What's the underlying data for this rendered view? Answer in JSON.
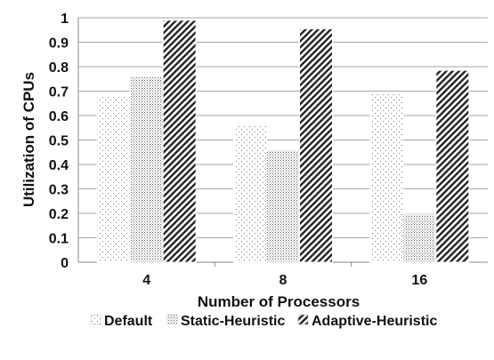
{
  "chart_data": {
    "type": "bar",
    "title": "",
    "xlabel": "Number of Processors",
    "ylabel": "Utilization of CPUs",
    "categories": [
      "4",
      "8",
      "16"
    ],
    "ylim": [
      0,
      1
    ],
    "yticks": [
      "0",
      "0.1",
      "0.2",
      "0.3",
      "0.4",
      "0.5",
      "0.6",
      "0.7",
      "0.8",
      "0.9",
      "1"
    ],
    "grid": true,
    "legend_position": "bottom",
    "series": [
      {
        "name": "Default",
        "values": [
          0.68,
          0.56,
          0.69
        ],
        "pattern": "sparse-dots",
        "color": "#777777"
      },
      {
        "name": "Static-Heuristic",
        "values": [
          0.76,
          0.46,
          0.2
        ],
        "pattern": "dense-dots",
        "color": "#666666"
      },
      {
        "name": "Adaptive-Heuristic",
        "values": [
          0.99,
          0.955,
          0.785
        ],
        "pattern": "diagonal-stripes",
        "color": "#222222"
      }
    ]
  }
}
